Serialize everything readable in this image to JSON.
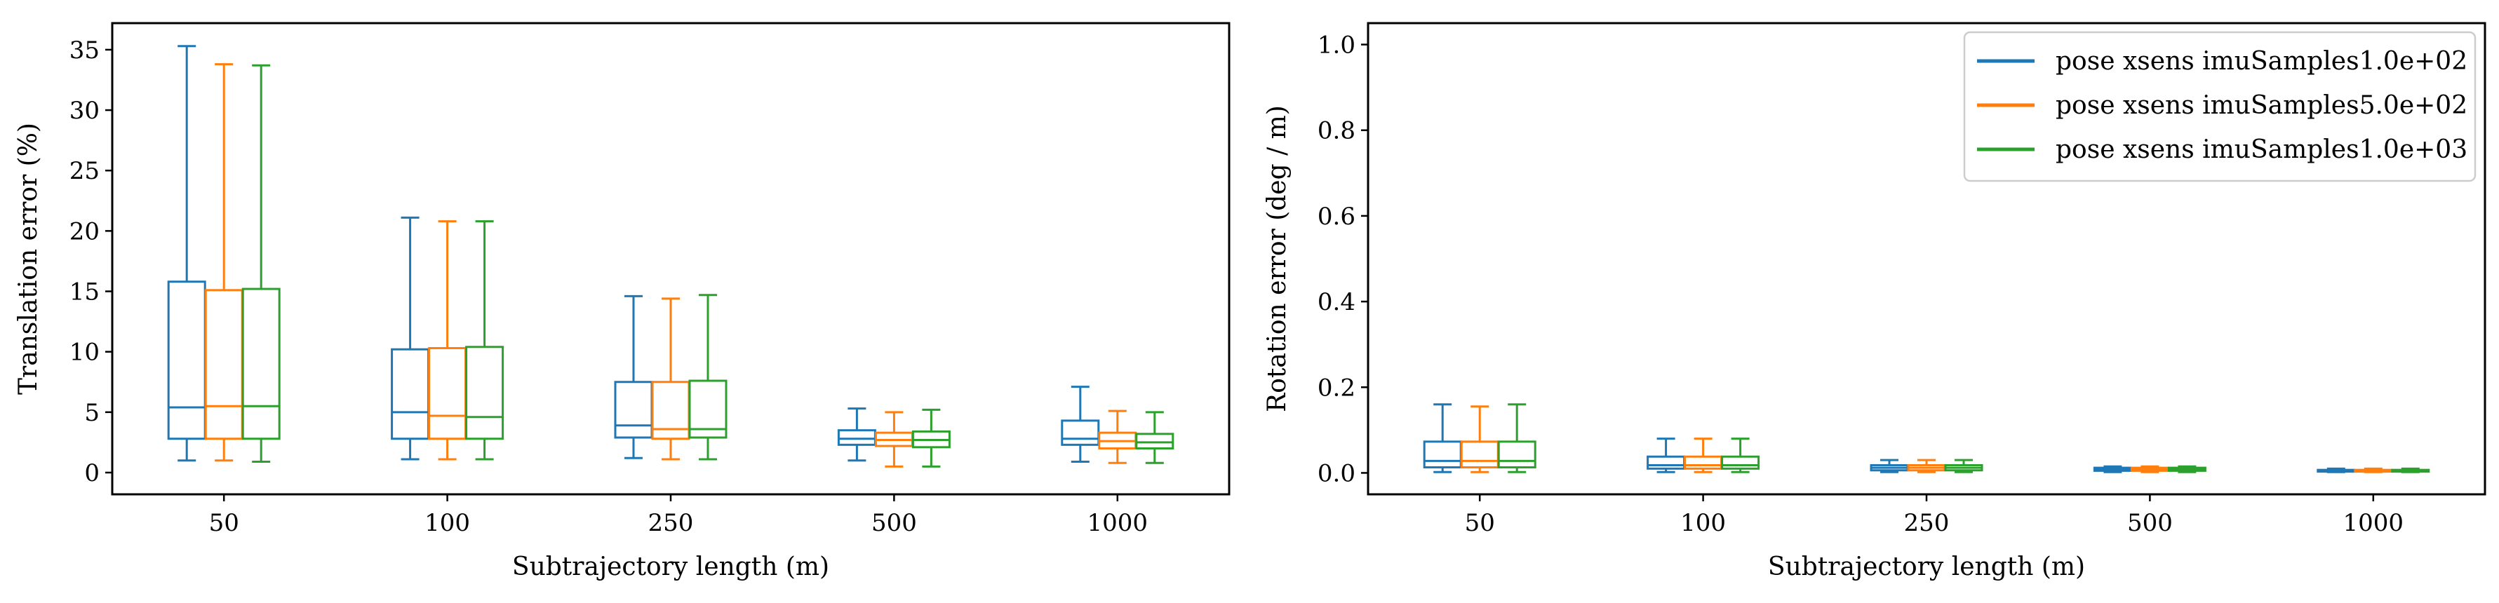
{
  "colors": {
    "blue": "#1f77b4",
    "orange": "#ff7f0e",
    "green": "#2ca02c"
  },
  "chart_data": [
    {
      "type": "box",
      "categories": [
        "50",
        "100",
        "250",
        "500",
        "1000"
      ],
      "xlabel": "Subtrajectory length (m)",
      "ylabel": "Translation error (%)",
      "ylim": [
        -1.8,
        37.2
      ],
      "yticks": [
        0,
        5,
        10,
        15,
        20,
        25,
        30,
        35
      ],
      "series": [
        {
          "name": "pose xsens imuSamples1.0e+02",
          "color": "#1f77b4",
          "boxes": [
            {
              "whislo": 1.0,
              "q1": 2.8,
              "med": 5.4,
              "q3": 15.8,
              "whishi": 35.3
            },
            {
              "whislo": 1.1,
              "q1": 2.8,
              "med": 5.0,
              "q3": 10.2,
              "whishi": 21.1
            },
            {
              "whislo": 1.2,
              "q1": 2.9,
              "med": 3.9,
              "q3": 7.5,
              "whishi": 14.6
            },
            {
              "whislo": 1.0,
              "q1": 2.3,
              "med": 2.8,
              "q3": 3.5,
              "whishi": 5.3
            },
            {
              "whislo": 0.9,
              "q1": 2.3,
              "med": 2.8,
              "q3": 4.3,
              "whishi": 7.1
            }
          ]
        },
        {
          "name": "pose xsens imuSamples5.0e+02",
          "color": "#ff7f0e",
          "boxes": [
            {
              "whislo": 1.0,
              "q1": 2.8,
              "med": 5.5,
              "q3": 15.1,
              "whishi": 33.8
            },
            {
              "whislo": 1.1,
              "q1": 2.8,
              "med": 4.7,
              "q3": 10.3,
              "whishi": 20.8
            },
            {
              "whislo": 1.1,
              "q1": 2.8,
              "med": 3.6,
              "q3": 7.5,
              "whishi": 14.4
            },
            {
              "whislo": 0.5,
              "q1": 2.2,
              "med": 2.7,
              "q3": 3.3,
              "whishi": 5.0
            },
            {
              "whislo": 0.8,
              "q1": 2.0,
              "med": 2.6,
              "q3": 3.3,
              "whishi": 5.1
            }
          ]
        },
        {
          "name": "pose xsens imuSamples1.0e+03",
          "color": "#2ca02c",
          "boxes": [
            {
              "whislo": 0.9,
              "q1": 2.8,
              "med": 5.5,
              "q3": 15.2,
              "whishi": 33.7
            },
            {
              "whislo": 1.1,
              "q1": 2.8,
              "med": 4.6,
              "q3": 10.4,
              "whishi": 20.8
            },
            {
              "whislo": 1.1,
              "q1": 2.9,
              "med": 3.6,
              "q3": 7.6,
              "whishi": 14.7
            },
            {
              "whislo": 0.5,
              "q1": 2.1,
              "med": 2.7,
              "q3": 3.4,
              "whishi": 5.2
            },
            {
              "whislo": 0.8,
              "q1": 2.0,
              "med": 2.5,
              "q3": 3.2,
              "whishi": 5.0
            }
          ]
        }
      ]
    },
    {
      "type": "box",
      "categories": [
        "50",
        "100",
        "250",
        "500",
        "1000"
      ],
      "xlabel": "Subtrajectory length (m)",
      "ylabel": "Rotation error (deg / m)",
      "ylim": [
        -0.05,
        1.05
      ],
      "yticks": [
        "0.0",
        "0.2",
        "0.4",
        "0.6",
        "0.8",
        "1.0"
      ],
      "legend": "top-right",
      "series": [
        {
          "name": "pose xsens imuSamples1.0e+02",
          "color": "#1f77b4",
          "boxes": [
            {
              "whislo": 0.002,
              "q1": 0.013,
              "med": 0.028,
              "q3": 0.073,
              "whishi": 0.16
            },
            {
              "whislo": 0.002,
              "q1": 0.01,
              "med": 0.018,
              "q3": 0.038,
              "whishi": 0.08
            },
            {
              "whislo": 0.002,
              "q1": 0.006,
              "med": 0.012,
              "q3": 0.018,
              "whishi": 0.03
            },
            {
              "whislo": 0.002,
              "q1": 0.005,
              "med": 0.008,
              "q3": 0.012,
              "whishi": 0.015
            },
            {
              "whislo": 0.002,
              "q1": 0.003,
              "med": 0.005,
              "q3": 0.007,
              "whishi": 0.01
            }
          ]
        },
        {
          "name": "pose xsens imuSamples5.0e+02",
          "color": "#ff7f0e",
          "boxes": [
            {
              "whislo": 0.002,
              "q1": 0.013,
              "med": 0.028,
              "q3": 0.073,
              "whishi": 0.155
            },
            {
              "whislo": 0.002,
              "q1": 0.01,
              "med": 0.018,
              "q3": 0.038,
              "whishi": 0.08
            },
            {
              "whislo": 0.002,
              "q1": 0.006,
              "med": 0.012,
              "q3": 0.018,
              "whishi": 0.03
            },
            {
              "whislo": 0.002,
              "q1": 0.005,
              "med": 0.008,
              "q3": 0.012,
              "whishi": 0.015
            },
            {
              "whislo": 0.002,
              "q1": 0.003,
              "med": 0.005,
              "q3": 0.007,
              "whishi": 0.01
            }
          ]
        },
        {
          "name": "pose xsens imuSamples1.0e+03",
          "color": "#2ca02c",
          "boxes": [
            {
              "whislo": 0.002,
              "q1": 0.013,
              "med": 0.028,
              "q3": 0.073,
              "whishi": 0.16
            },
            {
              "whislo": 0.002,
              "q1": 0.01,
              "med": 0.018,
              "q3": 0.038,
              "whishi": 0.08
            },
            {
              "whislo": 0.002,
              "q1": 0.006,
              "med": 0.012,
              "q3": 0.018,
              "whishi": 0.03
            },
            {
              "whislo": 0.002,
              "q1": 0.005,
              "med": 0.008,
              "q3": 0.012,
              "whishi": 0.015
            },
            {
              "whislo": 0.002,
              "q1": 0.003,
              "med": 0.005,
              "q3": 0.007,
              "whishi": 0.01
            }
          ]
        }
      ]
    }
  ]
}
